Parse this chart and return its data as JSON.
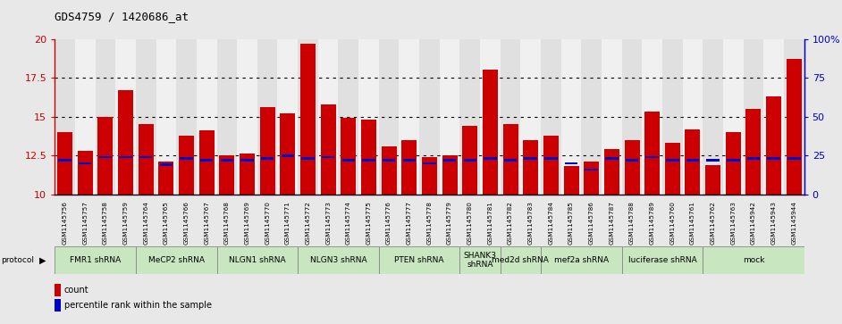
{
  "title": "GDS4759 / 1420686_at",
  "samples": [
    "GSM1145756",
    "GSM1145757",
    "GSM1145758",
    "GSM1145759",
    "GSM1145764",
    "GSM1145765",
    "GSM1145766",
    "GSM1145767",
    "GSM1145768",
    "GSM1145769",
    "GSM1145770",
    "GSM1145771",
    "GSM1145772",
    "GSM1145773",
    "GSM1145774",
    "GSM1145775",
    "GSM1145776",
    "GSM1145777",
    "GSM1145778",
    "GSM1145779",
    "GSM1145780",
    "GSM1145781",
    "GSM1145782",
    "GSM1145783",
    "GSM1145784",
    "GSM1145785",
    "GSM1145786",
    "GSM1145787",
    "GSM1145788",
    "GSM1145789",
    "GSM1145760",
    "GSM1145761",
    "GSM1145762",
    "GSM1145763",
    "GSM1145942",
    "GSM1145943",
    "GSM1145944"
  ],
  "counts": [
    14.0,
    12.8,
    15.0,
    16.7,
    14.5,
    12.1,
    13.8,
    14.1,
    12.5,
    12.6,
    15.6,
    15.2,
    19.7,
    15.8,
    14.9,
    14.8,
    13.1,
    13.5,
    12.4,
    12.5,
    14.4,
    18.0,
    14.5,
    13.5,
    13.8,
    11.8,
    12.1,
    12.9,
    13.5,
    15.3,
    13.3,
    14.2,
    11.9,
    14.0,
    15.5,
    16.3,
    18.7
  ],
  "percentile_ranks": [
    22,
    20,
    24,
    24,
    24,
    19,
    23,
    22,
    22,
    22,
    23,
    25,
    23,
    24,
    22,
    22,
    22,
    22,
    20,
    22,
    22,
    23,
    22,
    23,
    23,
    20,
    16,
    23,
    22,
    24,
    22,
    22,
    22,
    22,
    23,
    23,
    23
  ],
  "protocol_groups": [
    {
      "label": "FMR1 shRNA",
      "start": 0,
      "end": 4
    },
    {
      "label": "MeCP2 shRNA",
      "start": 4,
      "end": 8
    },
    {
      "label": "NLGN1 shRNA",
      "start": 8,
      "end": 12
    },
    {
      "label": "NLGN3 shRNA",
      "start": 12,
      "end": 16
    },
    {
      "label": "PTEN shRNA",
      "start": 16,
      "end": 20
    },
    {
      "label": "SHANK3\nshRNA",
      "start": 20,
      "end": 22
    },
    {
      "label": "med2d shRNA",
      "start": 22,
      "end": 24
    },
    {
      "label": "mef2a shRNA",
      "start": 24,
      "end": 28
    },
    {
      "label": "luciferase shRNA",
      "start": 28,
      "end": 32
    },
    {
      "label": "mock",
      "start": 32,
      "end": 37
    }
  ],
  "ymin": 10,
  "ymax": 20,
  "yticks": [
    10,
    12.5,
    15,
    17.5,
    20
  ],
  "ytick_labels": [
    "10",
    "12.5",
    "15",
    "17.5",
    "20"
  ],
  "right_yticks": [
    0,
    25,
    50,
    75,
    100
  ],
  "right_ytick_labels": [
    "0",
    "25",
    "50",
    "75",
    "100%"
  ],
  "bar_color": "#cc0000",
  "percentile_color": "#0000cc",
  "proto_color": "#c8e6c0",
  "proto_border": "#888888",
  "col_bg_even": "#e0e0e0",
  "col_bg_odd": "#f0f0f0",
  "plot_bg": "#ffffff",
  "fig_bg": "#e8e8e8"
}
